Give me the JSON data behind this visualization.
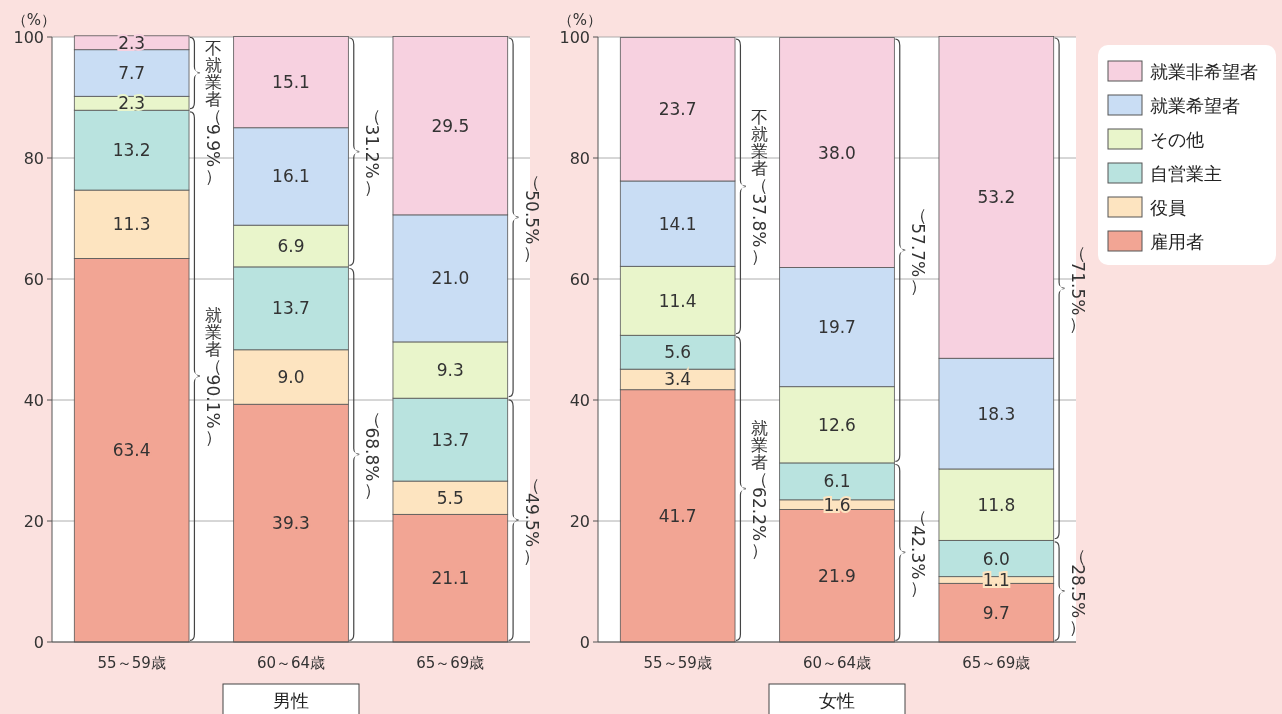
{
  "chart_data": [
    {
      "type": "bar",
      "stacked": true,
      "xlabel": "男性",
      "ylabel": "（%）",
      "categories": [
        "55～59歳",
        "60～64歳",
        "65～69歳"
      ],
      "ylim": [
        0,
        100
      ],
      "yticks": [
        0,
        20,
        40,
        60,
        80,
        100
      ],
      "grid": "y",
      "legend": false,
      "series": [
        {
          "color": "#f2a594",
          "values": [
            63.4,
            39.3,
            21.1
          ],
          "value_labels": [
            "63.4",
            "39.3",
            "21.1"
          ]
        },
        {
          "color": "#fde4c0",
          "values": [
            11.3,
            9.0,
            5.5
          ],
          "value_labels": [
            "11.3",
            "9.0",
            "5.5"
          ]
        },
        {
          "color": "#b9e3df",
          "values": [
            13.2,
            13.7,
            13.7
          ],
          "value_labels": [
            "13.2",
            "13.7",
            "13.7"
          ]
        },
        {
          "color": "#e9f5cb",
          "values": [
            2.3,
            6.9,
            9.3
          ],
          "value_labels": [
            "2.3",
            "6.9",
            "9.3"
          ]
        },
        {
          "color": "#c9ddf4",
          "values": [
            7.7,
            16.1,
            21.0
          ],
          "value_labels": [
            "7.7",
            "16.1",
            "21.0"
          ]
        },
        {
          "color": "#f7d1e0",
          "values": [
            2.3,
            15.1,
            29.5
          ],
          "value_labels": [
            "2.3",
            "15.1",
            "29.5"
          ]
        }
      ],
      "annotations": [
        "不就業者（9.9%）",
        "就業者（90.1%）",
        "（31.2%）",
        "（68.8%）",
        "（50.5%）",
        "（49.5%）"
      ]
    },
    {
      "type": "bar",
      "stacked": true,
      "xlabel": "女性",
      "ylabel": "（%）",
      "categories": [
        "55～59歳",
        "60～64歳",
        "65～69歳"
      ],
      "ylim": [
        0,
        100
      ],
      "yticks": [
        0,
        20,
        40,
        60,
        80,
        100
      ],
      "grid": "y",
      "legend": "right",
      "series": [
        {
          "name": "雇用者",
          "color": "#f2a594",
          "values": [
            41.7,
            21.9,
            9.7
          ],
          "value_labels": [
            "41.7",
            "21.9",
            "9.7"
          ]
        },
        {
          "name": "役員",
          "color": "#fde4c0",
          "values": [
            3.4,
            1.6,
            1.1
          ],
          "value_labels": [
            "3.4",
            "1.6",
            "1.1"
          ]
        },
        {
          "name": "自営業主",
          "color": "#b9e3df",
          "values": [
            5.6,
            6.1,
            6.0
          ],
          "value_labels": [
            "5.6",
            "6.1",
            "6.0"
          ]
        },
        {
          "name": "その他",
          "color": "#e9f5cb",
          "values": [
            11.4,
            12.6,
            11.8
          ],
          "value_labels": [
            "11.4",
            "12.6",
            "11.8"
          ]
        },
        {
          "name": "就業希望者",
          "color": "#c9ddf4",
          "values": [
            14.1,
            19.7,
            18.3
          ],
          "value_labels": [
            "14.1",
            "19.7",
            "18.3"
          ]
        },
        {
          "name": "就業非希望者",
          "color": "#f7d1e0",
          "values": [
            23.7,
            38.0,
            53.2
          ],
          "value_labels": [
            "23.7",
            "38.0",
            "53.2"
          ]
        }
      ],
      "annotations": [
        "不就業者（37.8%）",
        "就業者（62.2%）",
        "（57.7%）",
        "（42.3%）",
        "（71.5%）",
        "（28.5%）"
      ]
    }
  ]
}
